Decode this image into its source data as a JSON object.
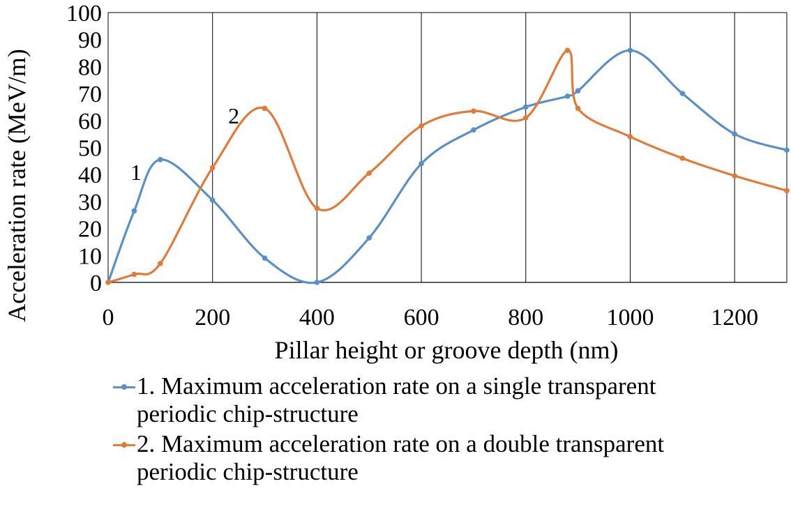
{
  "chart_data": {
    "type": "line",
    "xlabel": "Pillar height or groove depth (nm)",
    "ylabel": "Acceleration rate (MeV/m)",
    "xlim": [
      0,
      1300
    ],
    "ylim": [
      0,
      100
    ],
    "xticks": [
      0,
      200,
      400,
      600,
      800,
      1000,
      1200
    ],
    "yticks": [
      0,
      10,
      20,
      30,
      40,
      50,
      60,
      70,
      80,
      90,
      100
    ],
    "grid": "vertical",
    "legend_position": "bottom",
    "series": [
      {
        "name": "1. Maximum acceleration rate on a single transparent periodic chip-structure",
        "legend_lines": [
          "1. Maximum acceleration rate on a single transparent",
          "periodic chip-structure"
        ],
        "curve_label": "1",
        "color": "#5b8fc7",
        "points": [
          [
            0,
            0
          ],
          [
            50,
            26.5
          ],
          [
            100,
            45.5
          ],
          [
            200,
            30.5
          ],
          [
            300,
            9
          ],
          [
            400,
            0
          ],
          [
            500,
            16.5
          ],
          [
            600,
            44
          ],
          [
            700,
            56.5
          ],
          [
            800,
            65
          ],
          [
            880,
            69
          ],
          [
            900,
            71
          ],
          [
            1000,
            86
          ],
          [
            1100,
            70
          ],
          [
            1200,
            55
          ],
          [
            1300,
            49
          ]
        ]
      },
      {
        "name": "2. Maximum acceleration rate on a double transparent periodic chip-structure",
        "legend_lines": [
          "2. Maximum acceleration rate on a double transparent",
          "periodic chip-structure"
        ],
        "curve_label": "2",
        "color": "#e07b39",
        "points": [
          [
            0,
            0
          ],
          [
            50,
            3
          ],
          [
            100,
            7
          ],
          [
            200,
            42.5
          ],
          [
            300,
            64.5
          ],
          [
            400,
            27.5
          ],
          [
            500,
            40.5
          ],
          [
            600,
            58
          ],
          [
            700,
            63.5
          ],
          [
            800,
            61
          ],
          [
            880,
            86
          ],
          [
            900,
            64.5
          ],
          [
            1000,
            54
          ],
          [
            1100,
            46
          ],
          [
            1200,
            39.5
          ],
          [
            1300,
            34
          ]
        ]
      }
    ]
  }
}
